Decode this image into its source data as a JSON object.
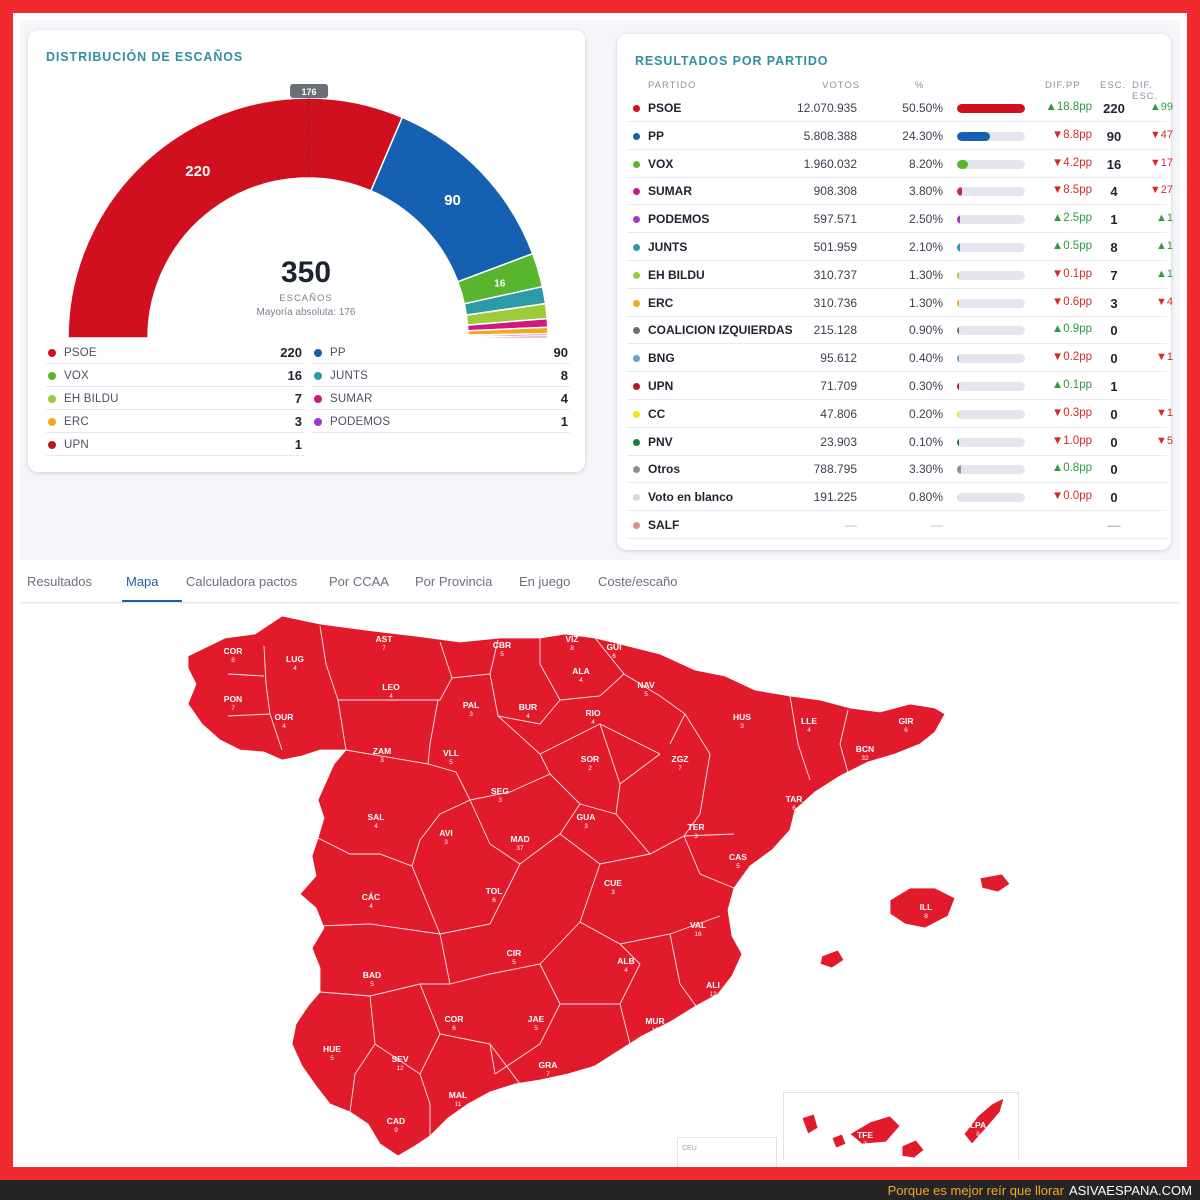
{
  "seat_distribution": {
    "title": "DISTRIBUCIÓN DE ESCAÑOS",
    "total": "350",
    "total_label": "ESCAÑOS",
    "majority_label": "Mayoría absoluta: 176",
    "majority_marker": "176",
    "arc_labels": {
      "psoe": "220",
      "pp": "90",
      "vox": "16"
    },
    "segments": [
      {
        "party": "PSOE",
        "seats": 220,
        "color": "#d0101f"
      },
      {
        "party": "PP",
        "seats": 90,
        "color": "#1560b0"
      },
      {
        "party": "VOX",
        "seats": 16,
        "color": "#5ab52e"
      },
      {
        "party": "JUNTS",
        "seats": 8,
        "color": "#2d9aa7"
      },
      {
        "party": "EH BILDU",
        "seats": 7,
        "color": "#9ccb3b"
      },
      {
        "party": "SUMAR",
        "seats": 4,
        "color": "#d1187f"
      },
      {
        "party": "ERC",
        "seats": 3,
        "color": "#f0a81c"
      },
      {
        "party": "PODEMOS",
        "seats": 1,
        "color": "#a535c8"
      },
      {
        "party": "UPN",
        "seats": 1,
        "color": "#b31b1b"
      }
    ],
    "legend": [
      {
        "name": "PSOE",
        "seats": "220",
        "color": "#d0101f"
      },
      {
        "name": "PP",
        "seats": "90",
        "color": "#1560b0"
      },
      {
        "name": "VOX",
        "seats": "16",
        "color": "#5ab52e"
      },
      {
        "name": "JUNTS",
        "seats": "8",
        "color": "#2d9aa7"
      },
      {
        "name": "EH BILDU",
        "seats": "7",
        "color": "#9ccb3b"
      },
      {
        "name": "SUMAR",
        "seats": "4",
        "color": "#d1187f"
      },
      {
        "name": "ERC",
        "seats": "3",
        "color": "#f0a81c"
      },
      {
        "name": "PODEMOS",
        "seats": "1",
        "color": "#a535c8"
      },
      {
        "name": "UPN",
        "seats": "1",
        "color": "#b31b1b"
      }
    ]
  },
  "results": {
    "title": "RESULTADOS POR PARTIDO",
    "headers": {
      "party": "PARTIDO",
      "votes": "VOTOS",
      "pct": "%",
      "diff_pp": "DIF.PP",
      "seats": "ESC.",
      "diff_seats": "DIF. ESC."
    },
    "rows": [
      {
        "name": "PSOE",
        "color": "#d0101f",
        "votes": "12.070.935",
        "pct": "50.50%",
        "share": 0.505,
        "diff": "▲18.8pp",
        "diff_dir": "up",
        "seats": "220",
        "dseats": "▲99",
        "dseats_dir": "up"
      },
      {
        "name": "PP",
        "color": "#1560b0",
        "votes": "5.808.388",
        "pct": "24.30%",
        "share": 0.243,
        "diff": "▼8.8pp",
        "diff_dir": "down",
        "seats": "90",
        "dseats": "▼47",
        "dseats_dir": "down"
      },
      {
        "name": "VOX",
        "color": "#5ab52e",
        "votes": "1.960.032",
        "pct": "8.20%",
        "share": 0.082,
        "diff": "▼4.2pp",
        "diff_dir": "down",
        "seats": "16",
        "dseats": "▼17",
        "dseats_dir": "down"
      },
      {
        "name": "SUMAR",
        "color": "#d1187f",
        "votes": "908.308",
        "pct": "3.80%",
        "share": 0.038,
        "diff": "▼8.5pp",
        "diff_dir": "down",
        "seats": "4",
        "dseats": "▼27",
        "dseats_dir": "down"
      },
      {
        "name": "PODEMOS",
        "color": "#a535c8",
        "votes": "597.571",
        "pct": "2.50%",
        "share": 0.025,
        "diff": "▲2.5pp",
        "diff_dir": "up",
        "seats": "1",
        "dseats": "▲1",
        "dseats_dir": "up"
      },
      {
        "name": "JUNTS",
        "color": "#2d9aa7",
        "votes": "501.959",
        "pct": "2.10%",
        "share": 0.021,
        "diff": "▲0.5pp",
        "diff_dir": "up",
        "seats": "8",
        "dseats": "▲1",
        "dseats_dir": "up"
      },
      {
        "name": "EH BILDU",
        "color": "#9ccb3b",
        "votes": "310.737",
        "pct": "1.30%",
        "share": 0.013,
        "diff": "▼0.1pp",
        "diff_dir": "down",
        "seats": "7",
        "dseats": "▲1",
        "dseats_dir": "up"
      },
      {
        "name": "ERC",
        "color": "#f0a81c",
        "votes": "310.736",
        "pct": "1.30%",
        "share": 0.013,
        "diff": "▼0.6pp",
        "diff_dir": "down",
        "seats": "3",
        "dseats": "▼4",
        "dseats_dir": "down"
      },
      {
        "name": "COALICION IZQUIERDAS",
        "color": "#6a6f78",
        "votes": "215.128",
        "pct": "0.90%",
        "share": 0.009,
        "diff": "▲0.9pp",
        "diff_dir": "up",
        "seats": "0",
        "dseats": "",
        "dseats_dir": ""
      },
      {
        "name": "BNG",
        "color": "#6f9fc6",
        "votes": "95.612",
        "pct": "0.40%",
        "share": 0.004,
        "diff": "▼0.2pp",
        "diff_dir": "down",
        "seats": "0",
        "dseats": "▼1",
        "dseats_dir": "down"
      },
      {
        "name": "UPN",
        "color": "#b31b1b",
        "votes": "71.709",
        "pct": "0.30%",
        "share": 0.003,
        "diff": "▲0.1pp",
        "diff_dir": "up",
        "seats": "1",
        "dseats": "",
        "dseats_dir": ""
      },
      {
        "name": "CC",
        "color": "#f4e41c",
        "votes": "47.806",
        "pct": "0.20%",
        "share": 0.002,
        "diff": "▼0.3pp",
        "diff_dir": "down",
        "seats": "0",
        "dseats": "▼1",
        "dseats_dir": "down"
      },
      {
        "name": "PNV",
        "color": "#1a7a3a",
        "votes": "23.903",
        "pct": "0.10%",
        "share": 0.001,
        "diff": "▼1.0pp",
        "diff_dir": "down",
        "seats": "0",
        "dseats": "▼5",
        "dseats_dir": "down"
      },
      {
        "name": "Otros",
        "color": "#8a8f98",
        "votes": "788.795",
        "pct": "3.30%",
        "share": 0.033,
        "diff": "▲0.8pp",
        "diff_dir": "up",
        "seats": "0",
        "dseats": "",
        "dseats_dir": ""
      },
      {
        "name": "Voto en blanco",
        "color": "#d6d9e0",
        "votes": "191.225",
        "pct": "0.80%",
        "share": 0.008,
        "diff": "▼0.0pp",
        "diff_dir": "down",
        "seats": "0",
        "dseats": "",
        "dseats_dir": ""
      },
      {
        "name": "SALF",
        "color": "#e08a8a",
        "votes": "—",
        "pct": "—",
        "share": null,
        "diff": "",
        "diff_dir": "",
        "seats": "—",
        "dseats": "",
        "dseats_dir": ""
      }
    ]
  },
  "tabs": [
    "Resultados",
    "Mapa",
    "Calculadora pactos",
    "Por CCAA",
    "Por Provincia",
    "En juego",
    "Coste/escaño"
  ],
  "active_tab": "Mapa",
  "map": {
    "fill_color": "#e11b2b",
    "provinces": [
      {
        "code": "COR",
        "seats": "8"
      },
      {
        "code": "LUG",
        "seats": "4"
      },
      {
        "code": "AST",
        "seats": "7"
      },
      {
        "code": "CBR",
        "seats": "5"
      },
      {
        "code": "VIZ",
        "seats": "8"
      },
      {
        "code": "GUI",
        "seats": "6"
      },
      {
        "code": "ALA",
        "seats": "4"
      },
      {
        "code": "NAV",
        "seats": "5"
      },
      {
        "code": "LEO",
        "seats": "4"
      },
      {
        "code": "PAL",
        "seats": "3"
      },
      {
        "code": "BUR",
        "seats": "4"
      },
      {
        "code": "RIO",
        "seats": "4"
      },
      {
        "code": "PON",
        "seats": "7"
      },
      {
        "code": "OUR",
        "seats": "4"
      },
      {
        "code": "HUS",
        "seats": "3"
      },
      {
        "code": "LLE",
        "seats": "4"
      },
      {
        "code": "GIR",
        "seats": "6"
      },
      {
        "code": "BCN",
        "seats": "32"
      },
      {
        "code": "ZAM",
        "seats": "3"
      },
      {
        "code": "VLL",
        "seats": "5"
      },
      {
        "code": "SOR",
        "seats": "2"
      },
      {
        "code": "ZGZ",
        "seats": "7"
      },
      {
        "code": "SEG",
        "seats": "3"
      },
      {
        "code": "TAR",
        "seats": "6"
      },
      {
        "code": "SAL",
        "seats": "4"
      },
      {
        "code": "AVI",
        "seats": "3"
      },
      {
        "code": "GUA",
        "seats": "3"
      },
      {
        "code": "MAD",
        "seats": "37"
      },
      {
        "code": "TER",
        "seats": "3"
      },
      {
        "code": "CAS",
        "seats": "5"
      },
      {
        "code": "CÁC",
        "seats": "4"
      },
      {
        "code": "TOL",
        "seats": "6"
      },
      {
        "code": "CUE",
        "seats": "3"
      },
      {
        "code": "VAL",
        "seats": "16"
      },
      {
        "code": "ILL",
        "seats": "8"
      },
      {
        "code": "CIR",
        "seats": "5"
      },
      {
        "code": "BAD",
        "seats": "5"
      },
      {
        "code": "ALB",
        "seats": "4"
      },
      {
        "code": "ALI",
        "seats": "12"
      },
      {
        "code": "COR",
        "seats": "6"
      },
      {
        "code": "JAE",
        "seats": "5"
      },
      {
        "code": "MUR",
        "seats": "10"
      },
      {
        "code": "HUE",
        "seats": "5"
      },
      {
        "code": "SEV",
        "seats": "12"
      },
      {
        "code": "GRA",
        "seats": "7"
      },
      {
        "code": "ALM",
        "seats": "6"
      },
      {
        "code": "MAL",
        "seats": "11"
      },
      {
        "code": "CAD",
        "seats": "9"
      },
      {
        "code": "TFE",
        "seats": "7"
      },
      {
        "code": "LPA",
        "seats": "8"
      }
    ],
    "inset_labels": {
      "ceu": "CEU",
      "mel": "MEL"
    }
  },
  "watermark": {
    "tagline": "Porque es mejor reír que llorar",
    "site": "ASIVAESPANA.COM"
  }
}
